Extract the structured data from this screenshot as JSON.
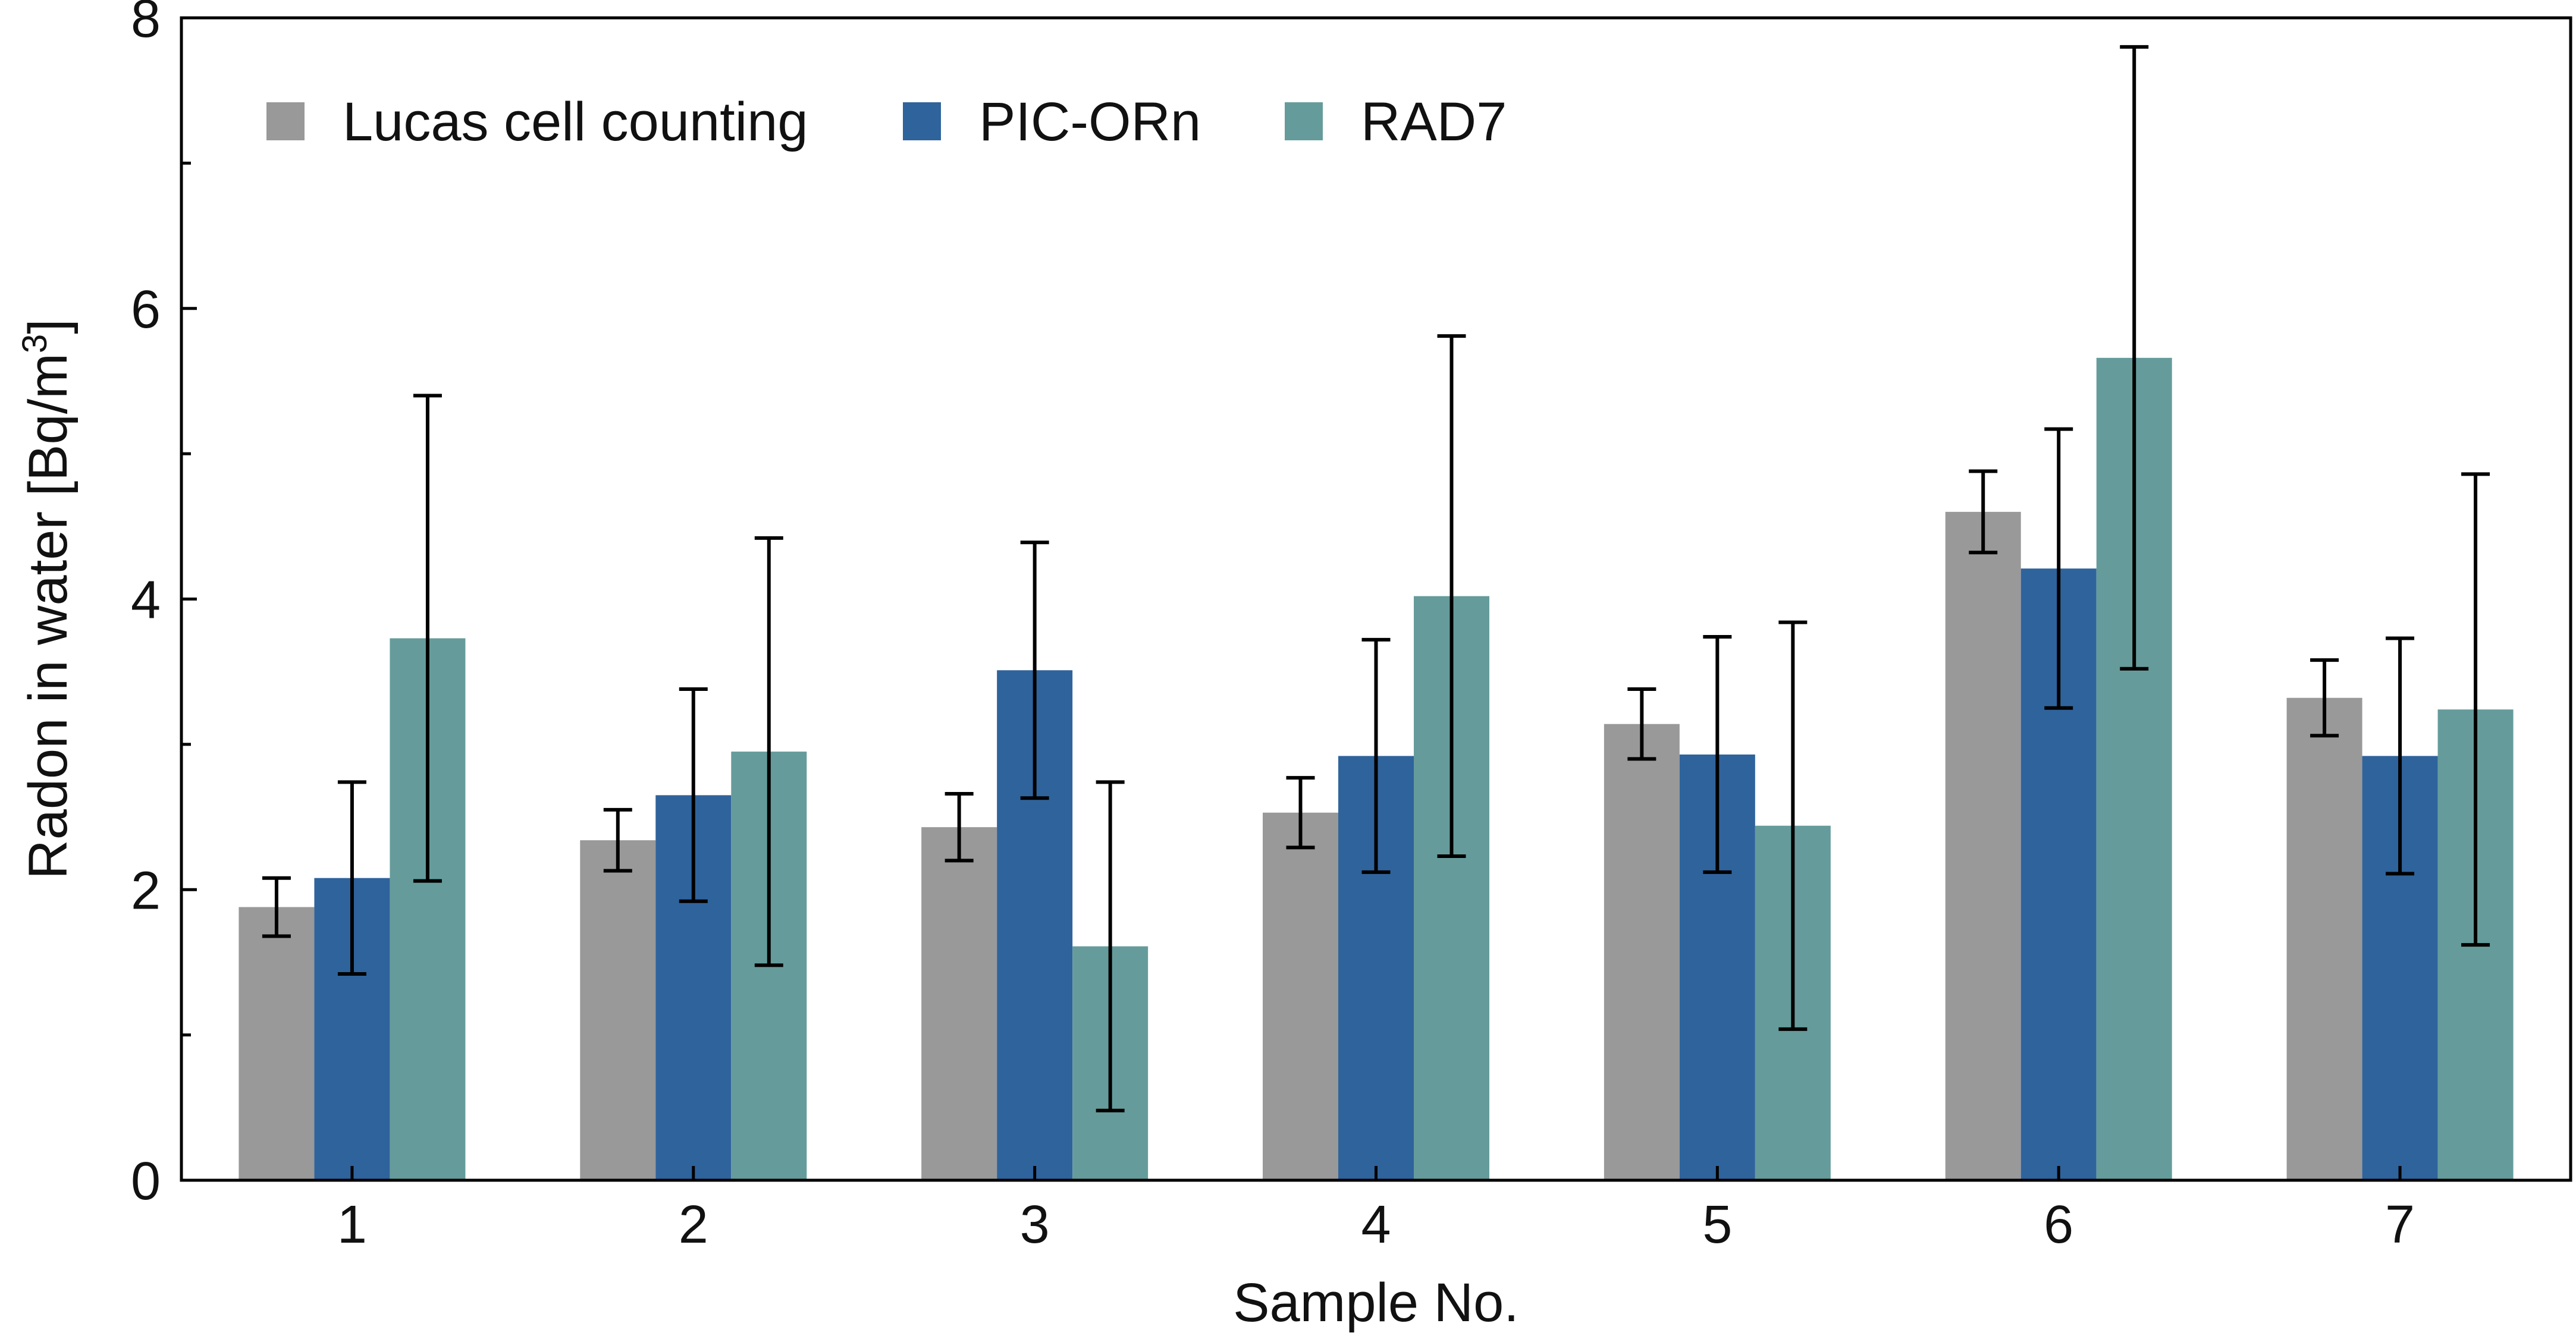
{
  "chart_data": {
    "type": "bar",
    "title": "",
    "xlabel": "Sample No.",
    "ylabel": {
      "main": "Radon in water [Bq/m",
      "superscript": "3",
      "close": "]"
    },
    "ylim": [
      0,
      8
    ],
    "yticks": [
      "0",
      "2",
      "4",
      "6",
      "8"
    ],
    "y_minor_step": 1,
    "categories": [
      "1",
      "2",
      "3",
      "4",
      "5",
      "6",
      "7"
    ],
    "legend_position": "top-left",
    "series": [
      {
        "name": "Lucas cell counting",
        "color": "#999999",
        "values": [
          1.88,
          2.34,
          2.43,
          2.53,
          3.14,
          4.6,
          3.32
        ],
        "errors": [
          0.2,
          0.21,
          0.23,
          0.24,
          0.24,
          0.28,
          0.26
        ]
      },
      {
        "name": "PIC-ORn",
        "color": "#2f639c",
        "values": [
          2.08,
          2.65,
          3.51,
          2.92,
          2.93,
          4.21,
          2.92
        ],
        "errors": [
          0.66,
          0.73,
          0.88,
          0.8,
          0.81,
          0.96,
          0.81
        ]
      },
      {
        "name": "RAD7",
        "color": "#659c9b",
        "values": [
          3.73,
          2.95,
          1.61,
          4.02,
          2.44,
          5.66,
          3.24
        ],
        "errors": [
          1.67,
          1.47,
          1.13,
          1.79,
          1.4,
          2.14,
          1.62
        ]
      }
    ]
  }
}
